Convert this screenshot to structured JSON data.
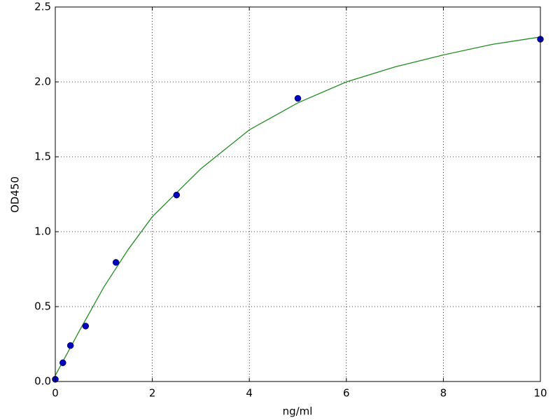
{
  "chart_data": {
    "type": "scatter",
    "x_label": "ng/ml",
    "y_label": "OD450",
    "xlim": [
      0,
      10
    ],
    "ylim": [
      0,
      2.5
    ],
    "xticks": [
      0,
      2,
      4,
      6,
      8,
      10
    ],
    "yticks": [
      {
        "value": 0,
        "label": "0.0"
      },
      {
        "value": 0.5,
        "label": "0.5"
      },
      {
        "value": 1,
        "label": "1.0"
      },
      {
        "value": 1.5,
        "label": "1.5"
      },
      {
        "value": 2,
        "label": "2.0"
      },
      {
        "value": 2.5,
        "label": "2.5"
      }
    ],
    "grid": true,
    "points": {
      "color": "#0000bf",
      "x": [
        0,
        0.156,
        0.3125,
        0.625,
        1.25,
        2.5,
        5,
        10
      ],
      "y": [
        0.015,
        0.125,
        0.24,
        0.37,
        0.795,
        1.245,
        1.89,
        2.285
      ]
    },
    "curve": {
      "color": "#228b22",
      "x": [
        0,
        0.25,
        0.5,
        1,
        1.5,
        2,
        3,
        4,
        5,
        6,
        7,
        8,
        9,
        10
      ],
      "y": [
        0.04,
        0.19,
        0.34,
        0.63,
        0.88,
        1.1,
        1.42,
        1.68,
        1.86,
        2.0,
        2.1,
        2.18,
        2.25,
        2.3
      ]
    }
  }
}
